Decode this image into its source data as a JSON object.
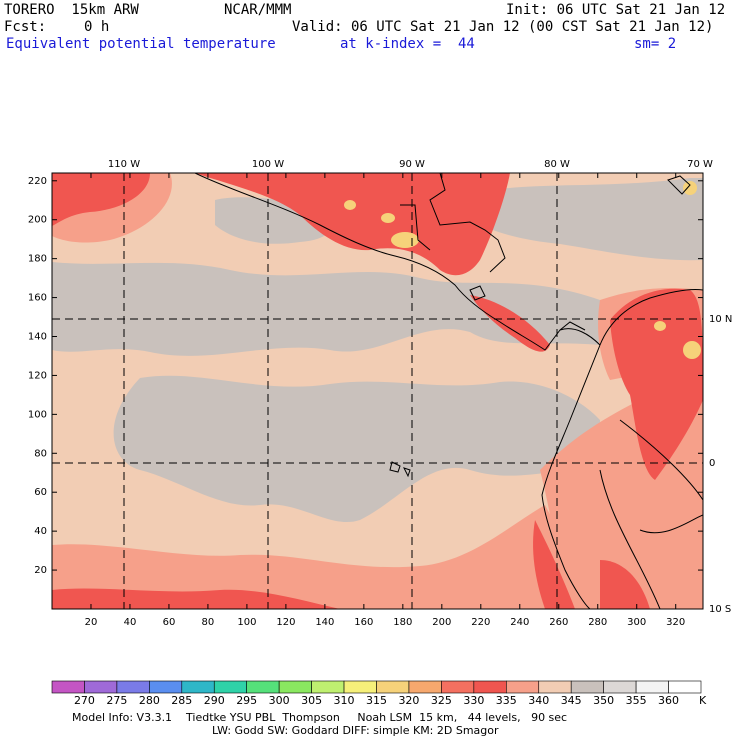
{
  "header": {
    "model": "TORERO  15km ARW",
    "center": "NCAR/MMM",
    "init": "Init: 06 UTC Sat 21 Jan 12",
    "fcst_label": "Fcst:",
    "fcst_value": "0 h",
    "valid": "Valid: 06 UTC Sat 21 Jan 12 (00 CST Sat 21 Jan 12)",
    "field": "Equivalent potential temperature",
    "level": "at k-index =  44",
    "smoothing": "sm= 2"
  },
  "map": {
    "lon_labels": [
      "110 W",
      "100 W",
      "90 W",
      "80 W",
      "70 W"
    ],
    "lat_labels": [
      "10 N",
      "0",
      "10 S"
    ],
    "y_ticks": [
      "220",
      "200",
      "180",
      "160",
      "140",
      "120",
      "100",
      "80",
      "60",
      "40",
      "20"
    ],
    "x_ticks": [
      "20",
      "40",
      "60",
      "80",
      "100",
      "120",
      "140",
      "160",
      "180",
      "200",
      "220",
      "240",
      "260",
      "280",
      "300",
      "320"
    ],
    "x_range": [
      0,
      334
    ],
    "y_range": [
      0,
      224
    ]
  },
  "colorbar": {
    "values": [
      "270",
      "275",
      "280",
      "285",
      "290",
      "295",
      "300",
      "305",
      "310",
      "315",
      "320",
      "325",
      "330",
      "335",
      "340",
      "345",
      "350",
      "355",
      "360"
    ],
    "unit": "K",
    "colors": [
      "#c455c4",
      "#9f6ad8",
      "#7a7be8",
      "#5a8ef0",
      "#2fb7c8",
      "#2fd2a8",
      "#55e07a",
      "#8ae860",
      "#bff070",
      "#f6f07a",
      "#f6d27a",
      "#f6a86e",
      "#f47060",
      "#f05650",
      "#f6a08a",
      "#f2cdb4",
      "#c9c1bc",
      "#dcd8d6",
      "#f4f4f4",
      "#ffffff"
    ]
  },
  "footer": {
    "line1": "Model Info: V3.3.1    Tiedtke YSU PBL  Thompson     Noah LSM  15 km,   44 levels,   90 sec",
    "line2": "LW: Godd SW: Goddard DIFF: simple KM: 2D Smagor"
  }
}
